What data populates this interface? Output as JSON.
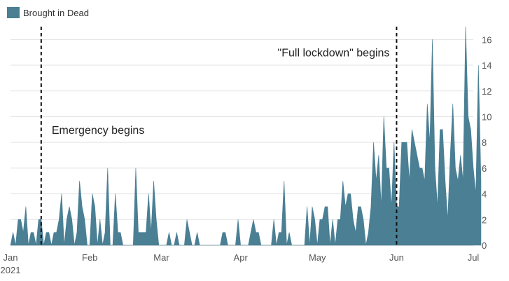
{
  "chart_data": {
    "type": "area",
    "title": "",
    "xlabel": "",
    "ylabel": "",
    "ylim": [
      0,
      17
    ],
    "y_ticks": [
      0,
      2,
      4,
      6,
      8,
      10,
      12,
      14,
      16
    ],
    "x_ticks": [
      {
        "date": "2021-01-01",
        "label": "Jan",
        "sublabel": "2021"
      },
      {
        "date": "2021-02-01",
        "label": "Feb"
      },
      {
        "date": "2021-03-01",
        "label": "Mar"
      },
      {
        "date": "2021-04-01",
        "label": "Apr"
      },
      {
        "date": "2021-05-01",
        "label": "May"
      },
      {
        "date": "2021-06-01",
        "label": "Jun"
      },
      {
        "date": "2021-07-01",
        "label": "Jul"
      }
    ],
    "grid": "horizontal",
    "legend": {
      "position": "top-left"
    },
    "series": [
      {
        "name": "Brought in Dead",
        "color": "#4a7f94",
        "start_date": "2021-01-01",
        "values": [
          0,
          1,
          0,
          2,
          2,
          1,
          3,
          0,
          1,
          1,
          0,
          2,
          2,
          0,
          1,
          1,
          0,
          1,
          1,
          2,
          4,
          0,
          2,
          3,
          2,
          0,
          1,
          5,
          3,
          2,
          0,
          0,
          4,
          3,
          0,
          2,
          0,
          1,
          6,
          0,
          0,
          4,
          1,
          1,
          0,
          0,
          0,
          0,
          0,
          6,
          1,
          1,
          1,
          1,
          4,
          1,
          5,
          2,
          0,
          0,
          0,
          0,
          1,
          0,
          0,
          1,
          0,
          0,
          0,
          2,
          1,
          0,
          0,
          1,
          0,
          0,
          0,
          0,
          0,
          0,
          0,
          0,
          0,
          1,
          1,
          0,
          0,
          0,
          0,
          2,
          0,
          0,
          0,
          0,
          1,
          2,
          1,
          1,
          0,
          0,
          0,
          0,
          0,
          2,
          0,
          1,
          1,
          5,
          0,
          1,
          0,
          0,
          0,
          0,
          0,
          0,
          3,
          0,
          3,
          2,
          0,
          2,
          2,
          3,
          3,
          0,
          2,
          0,
          2,
          2,
          5,
          3,
          4,
          4,
          2,
          1,
          3,
          3,
          2,
          0,
          1,
          3,
          8,
          5,
          7,
          3,
          10,
          6,
          6,
          3,
          8,
          3,
          3,
          8,
          8,
          8,
          5,
          9,
          8,
          7,
          6,
          6,
          5,
          11,
          8,
          16,
          6,
          3,
          9,
          9,
          5,
          2,
          7,
          11,
          6,
          5,
          7,
          5,
          17,
          10,
          9,
          6,
          4,
          14,
          5
        ]
      }
    ],
    "annotations": [
      {
        "date": "2021-01-13",
        "label": "Emergency begins",
        "label_y": 9
      },
      {
        "date": "2021-06-01",
        "label": "\"Full lockdown\" begins",
        "label_y": 15
      }
    ]
  }
}
